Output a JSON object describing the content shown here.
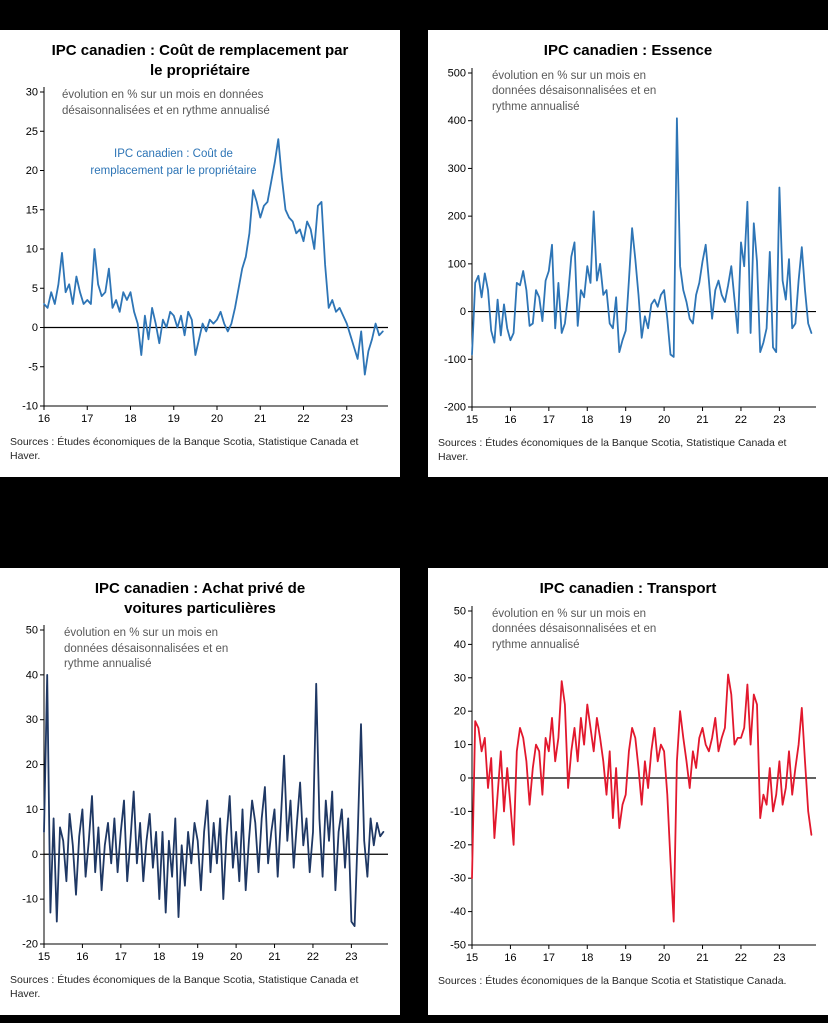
{
  "page": {
    "background": "#000000",
    "panel_background": "#ffffff"
  },
  "chart_data": [
    {
      "type": "line",
      "title": "IPC canadien : Coût de remplacement par le propriétaire",
      "annotation": "évolution en % sur un mois en données désaisonnalisées et en rythme annualisé",
      "series_label": "IPC canadien : Coût de remplacement par le propriétaire",
      "line_color": "#2e75b6",
      "ylim": [
        -10,
        30
      ],
      "y_ticks": [
        30,
        25,
        20,
        15,
        10,
        5,
        0,
        -5,
        -10
      ],
      "x_start_year": 2016,
      "x_tick_labels": [
        "16",
        "17",
        "18",
        "19",
        "20",
        "21",
        "22",
        "23"
      ],
      "frequency": "monthly",
      "values": [
        3,
        2.5,
        4.5,
        3,
        5.5,
        9.5,
        4.5,
        5.5,
        3,
        6.5,
        4.5,
        3,
        3.5,
        3,
        10,
        5.5,
        4,
        4.5,
        7.5,
        2.5,
        3.5,
        2,
        4.5,
        3.5,
        4.5,
        2,
        0.5,
        -3.5,
        1.5,
        -1.5,
        2.5,
        0.5,
        -2,
        1,
        0,
        2,
        1.5,
        0,
        1.5,
        -1,
        2,
        1,
        -3.5,
        -1.5,
        0.5,
        -0.5,
        1,
        0.5,
        1,
        2,
        0.5,
        -0.5,
        0.5,
        2.5,
        5,
        7.5,
        9,
        12,
        17.5,
        16,
        14,
        15.5,
        16,
        18.5,
        21,
        24,
        19,
        15,
        14,
        13.5,
        12,
        12.5,
        11,
        13.5,
        12.5,
        10,
        15.5,
        16,
        8,
        2.5,
        3.5,
        2,
        2.5,
        1.5,
        0.5,
        -1,
        -2.5,
        -4,
        -0.5,
        -6,
        -3,
        -1.5,
        0.5,
        -1,
        -0.5
      ],
      "source": "Sources : Études économiques de la Banque Scotia, Statistique Canada et Haver."
    },
    {
      "type": "line",
      "title": "IPC canadien : Essence",
      "annotation": "évolution en % sur un mois en données désaisonnalisées et en rythme annualisé",
      "series_label": "",
      "line_color": "#2e75b6",
      "ylim": [
        -200,
        500
      ],
      "y_ticks": [
        500,
        400,
        300,
        200,
        100,
        0,
        -100,
        -200
      ],
      "x_start_year": 2015,
      "x_tick_labels": [
        "15",
        "16",
        "17",
        "18",
        "19",
        "20",
        "21",
        "22",
        "23"
      ],
      "frequency": "monthly",
      "values": [
        -90,
        60,
        75,
        30,
        80,
        45,
        -40,
        -65,
        25,
        -50,
        15,
        -35,
        -60,
        -45,
        60,
        55,
        85,
        45,
        -30,
        -25,
        45,
        30,
        -20,
        65,
        85,
        140,
        -35,
        60,
        -45,
        -25,
        35,
        115,
        145,
        -30,
        45,
        30,
        95,
        60,
        210,
        65,
        100,
        35,
        45,
        -25,
        -35,
        30,
        -85,
        -60,
        -40,
        65,
        175,
        110,
        35,
        -55,
        -10,
        -35,
        15,
        25,
        10,
        35,
        45,
        -15,
        -90,
        -95,
        405,
        95,
        45,
        20,
        -15,
        -25,
        35,
        60,
        105,
        140,
        65,
        -15,
        45,
        65,
        35,
        20,
        55,
        95,
        25,
        -45,
        145,
        95,
        230,
        -45,
        185,
        105,
        -85,
        -65,
        -35,
        125,
        -75,
        -85,
        260,
        65,
        25,
        110,
        -35,
        -25,
        65,
        135,
        45,
        -25,
        -45
      ],
      "source": "Sources : Études économiques de la Banque Scotia, Statistique Canada et Haver."
    },
    {
      "type": "line",
      "title": "IPC canadien : Achat privé de voitures particulières",
      "annotation": "évolution en % sur un mois en données désaisonnalisées et en rythme annualisé",
      "series_label": "",
      "line_color": "#1f3864",
      "ylim": [
        -20,
        50
      ],
      "y_ticks": [
        50,
        40,
        30,
        20,
        10,
        0,
        -10,
        -20
      ],
      "x_start_year": 2015,
      "x_tick_labels": [
        "15",
        "16",
        "17",
        "18",
        "19",
        "20",
        "21",
        "22",
        "23"
      ],
      "frequency": "monthly",
      "values": [
        5,
        40,
        -13,
        8,
        -15,
        6,
        3,
        -6,
        9,
        2,
        -9,
        4,
        10,
        -5,
        3,
        13,
        -4,
        6,
        -8,
        2,
        7,
        -2,
        8,
        -4,
        5,
        12,
        -6,
        3,
        14,
        -2,
        7,
        -6,
        3,
        9,
        -3,
        5,
        -10,
        5,
        -13,
        3,
        -5,
        8,
        -14,
        2,
        -7,
        5,
        -2,
        7,
        3,
        -8,
        5,
        12,
        -4,
        7,
        -2,
        8,
        -10,
        4,
        13,
        -3,
        5,
        -6,
        10,
        -8,
        3,
        12,
        7,
        -4,
        8,
        15,
        -2,
        5,
        10,
        -5,
        8,
        22,
        3,
        12,
        -3,
        7,
        16,
        2,
        8,
        -4,
        5,
        38,
        8,
        -5,
        12,
        3,
        14,
        -8,
        5,
        10,
        -3,
        8,
        -15,
        -16,
        5,
        29,
        3,
        -5,
        8,
        2,
        7,
        4,
        5
      ],
      "source": "Sources : Études économiques de la Banque Scotia, Statistique Canada et Haver."
    },
    {
      "type": "line",
      "title": "IPC canadien : Transport",
      "annotation": "évolution en % sur un mois en données désaisonnalisées et en rythme annualisé",
      "series_label": "",
      "line_color": "#e2182d",
      "ylim": [
        -50,
        50
      ],
      "y_ticks": [
        50,
        40,
        30,
        20,
        10,
        0,
        -10,
        -20,
        -30,
        -40,
        -50
      ],
      "x_start_year": 2015,
      "x_tick_labels": [
        "15",
        "16",
        "17",
        "18",
        "19",
        "20",
        "21",
        "22",
        "23"
      ],
      "frequency": "monthly",
      "values": [
        -30,
        17,
        15,
        8,
        12,
        -3,
        6,
        -18,
        -5,
        8,
        -10,
        3,
        -8,
        -20,
        8,
        15,
        12,
        5,
        -8,
        3,
        10,
        8,
        -5,
        12,
        8,
        18,
        5,
        12,
        29,
        22,
        -3,
        8,
        15,
        5,
        18,
        10,
        22,
        15,
        8,
        18,
        12,
        5,
        -5,
        8,
        -12,
        3,
        -15,
        -8,
        -5,
        8,
        15,
        12,
        3,
        -8,
        5,
        -3,
        8,
        15,
        5,
        10,
        8,
        -5,
        -25,
        -43,
        5,
        20,
        12,
        5,
        -3,
        8,
        3,
        12,
        15,
        10,
        8,
        12,
        18,
        8,
        12,
        15,
        31,
        25,
        10,
        12,
        12,
        15,
        28,
        10,
        25,
        22,
        -12,
        -5,
        -8,
        3,
        -10,
        -5,
        5,
        -8,
        -3,
        8,
        -5,
        3,
        10,
        21,
        5,
        -10,
        -17
      ],
      "source": "Sources : Études économiques de la Banque Scotia et Statistique Canada."
    }
  ]
}
